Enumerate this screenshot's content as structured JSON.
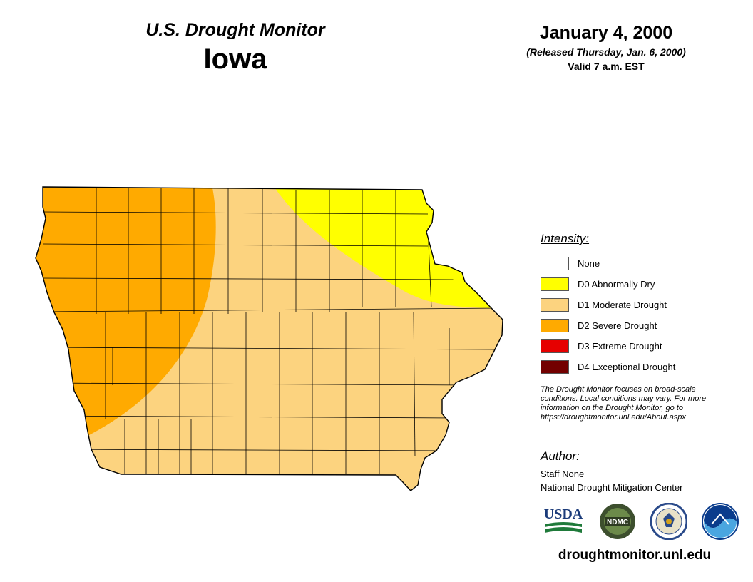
{
  "header": {
    "product": "U.S. Drought Monitor",
    "state": "Iowa",
    "date": "January 4, 2000",
    "released": "(Released Thursday, Jan. 6, 2000)",
    "valid": "Valid 7 a.m. EST"
  },
  "colors": {
    "none": "#ffffff",
    "d0": "#ffff00",
    "d1": "#fcd37f",
    "d2": "#ffaa00",
    "d3": "#e60000",
    "d4": "#730000",
    "county_line": "#000000"
  },
  "legend": {
    "title": "Intensity:",
    "items": [
      {
        "label": "None",
        "color": "#ffffff",
        "icon": "swatch-none"
      },
      {
        "label": "D0 Abnormally Dry",
        "color": "#ffff00",
        "icon": "swatch-d0"
      },
      {
        "label": "D1 Moderate Drought",
        "color": "#fcd37f",
        "icon": "swatch-d1"
      },
      {
        "label": "D2 Severe Drought",
        "color": "#ffaa00",
        "icon": "swatch-d2"
      },
      {
        "label": "D3 Extreme Drought",
        "color": "#e60000",
        "icon": "swatch-d3"
      },
      {
        "label": "D4 Exceptional Drought",
        "color": "#730000",
        "icon": "swatch-d4"
      }
    ]
  },
  "note": {
    "line1": "The Drought Monitor focuses on broad-scale",
    "line2": "conditions. Local conditions may vary. For more",
    "line3": "information on the Drought Monitor, go to",
    "line4": "https://droughtmonitor.unl.edu/About.aspx"
  },
  "author": {
    "title": "Author:",
    "name": "Staff None",
    "org": "National Drought Mitigation Center"
  },
  "logos": {
    "usda": "USDA",
    "ndmc": "NDMC",
    "noaa": "NOAA"
  },
  "site": "droughtmonitor.unl.edu"
}
